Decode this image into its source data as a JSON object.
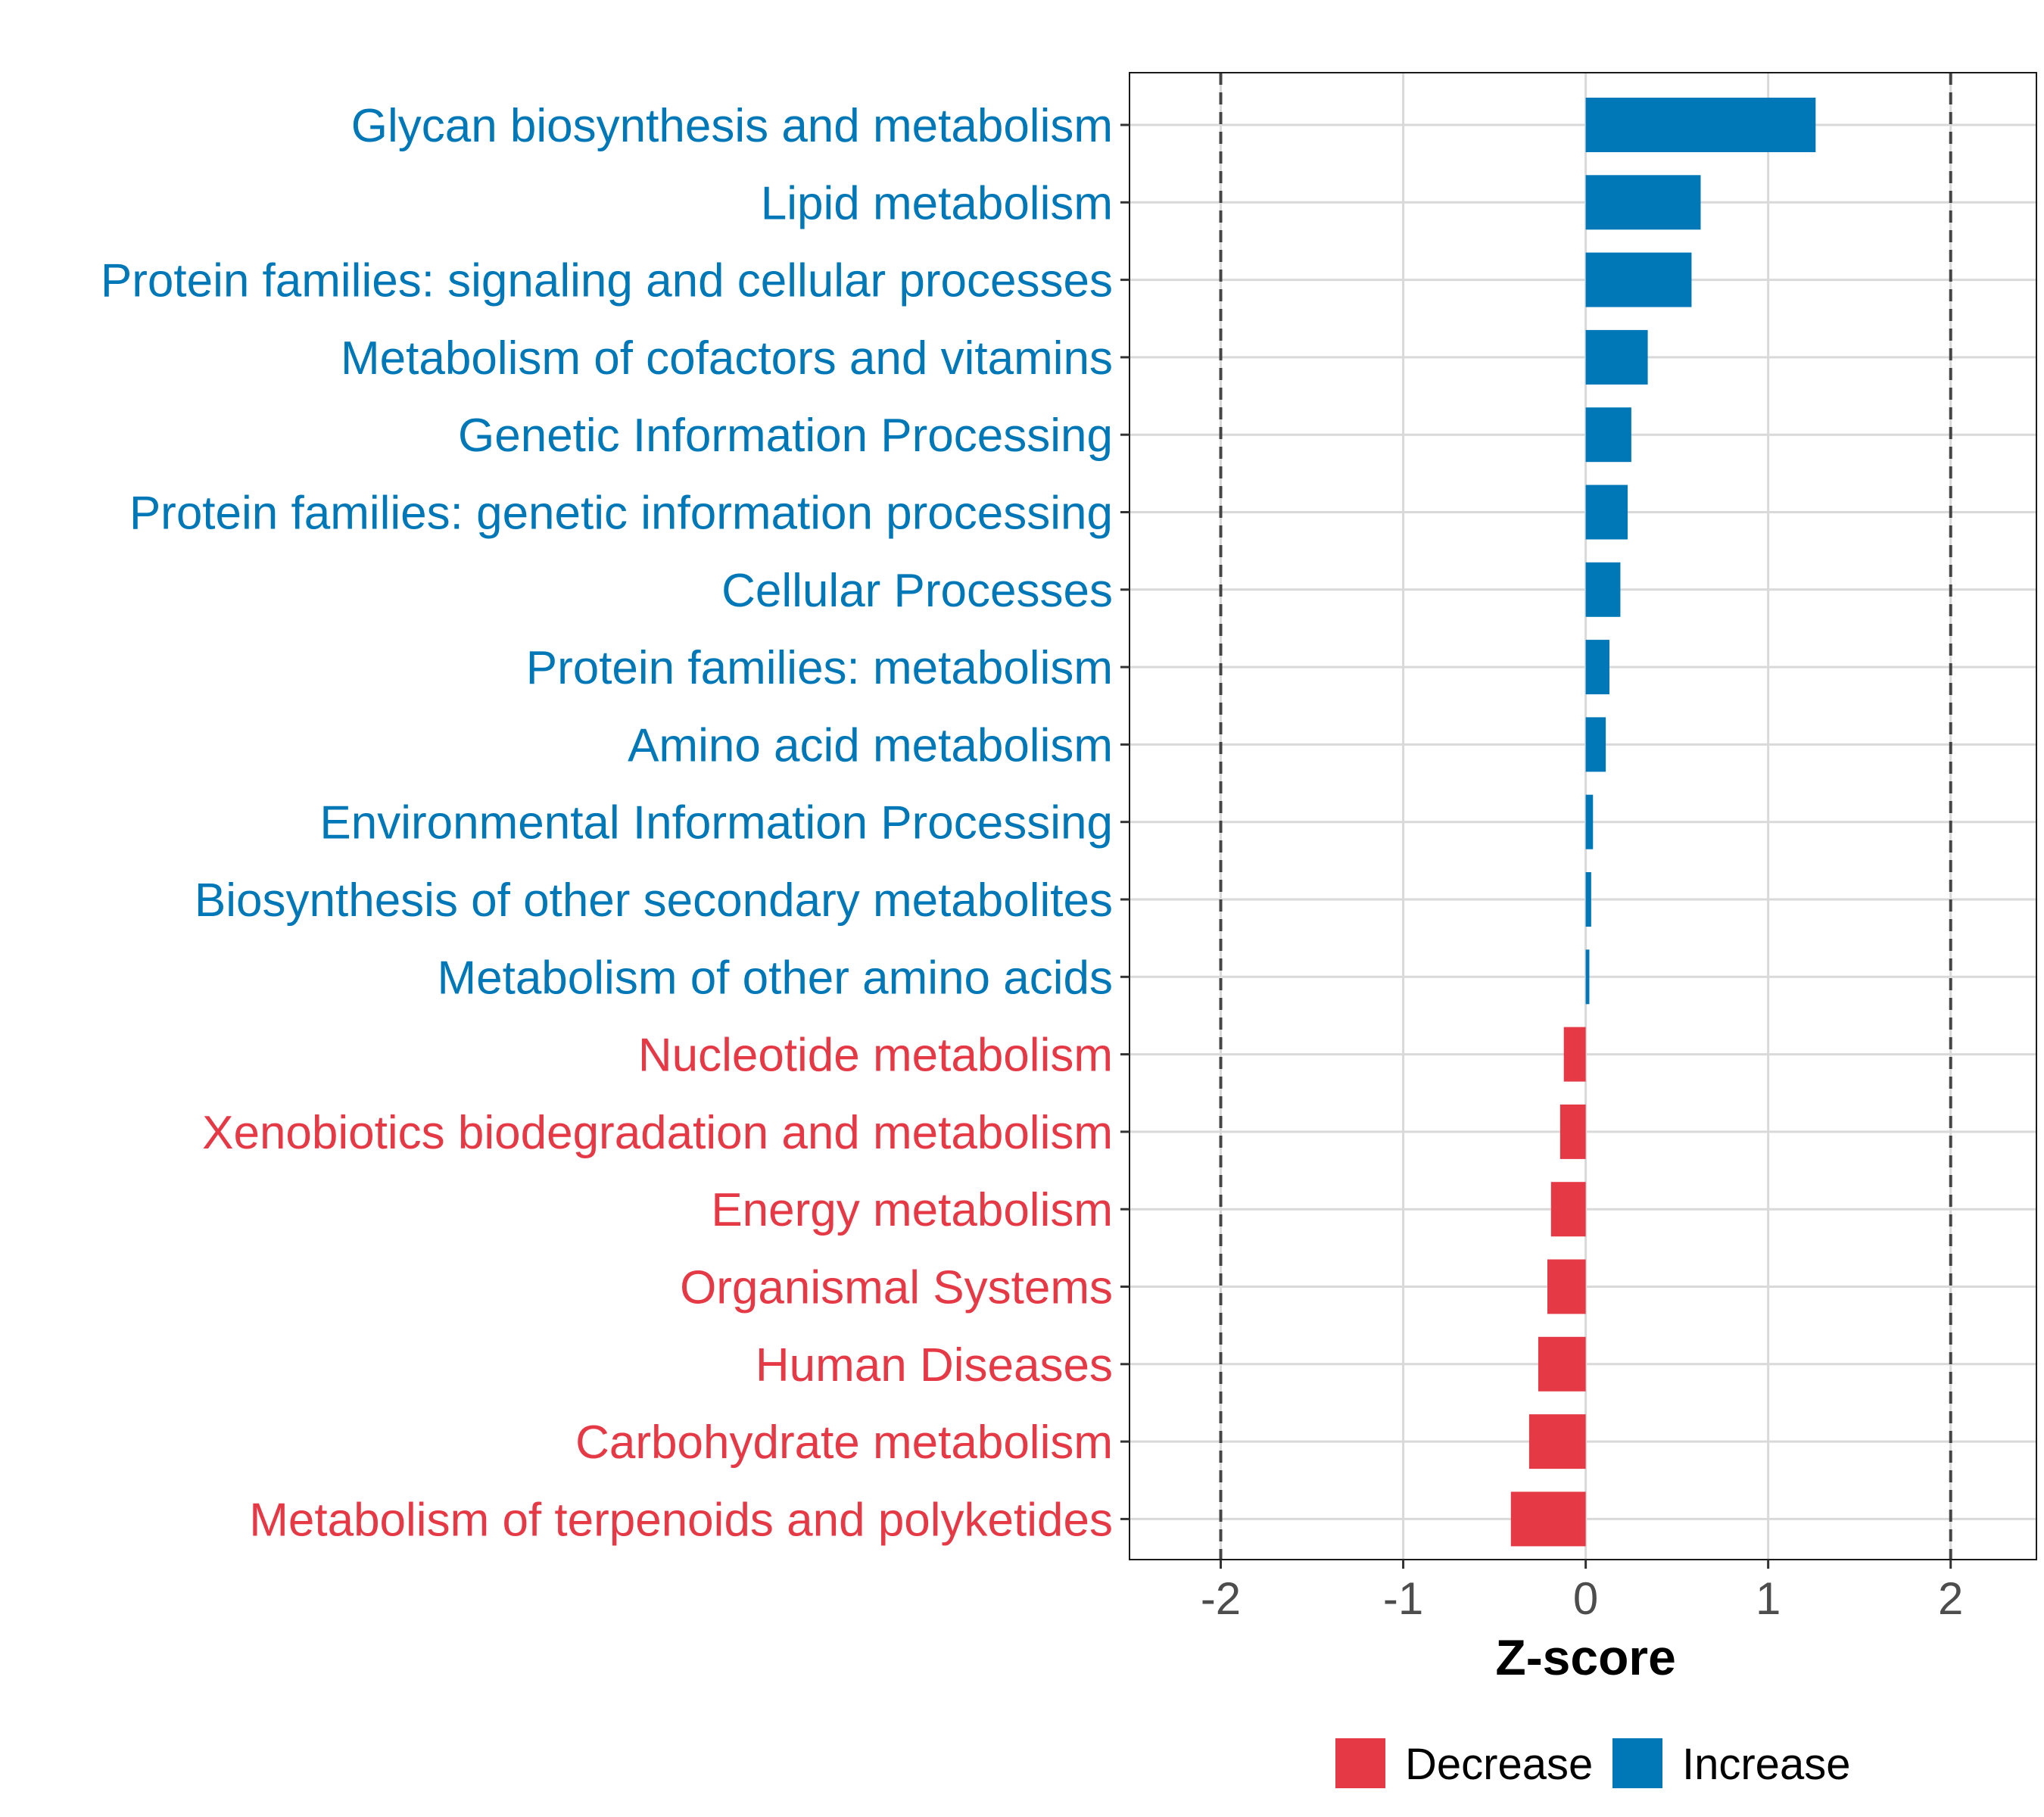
{
  "chart_data": {
    "type": "bar",
    "orientation": "horizontal",
    "categories": [
      "Glycan biosynthesis and metabolism",
      "Lipid metabolism",
      "Protein families: signaling and cellular processes",
      "Metabolism of cofactors and vitamins",
      "Genetic Information Processing",
      "Protein families: genetic information processing",
      "Cellular Processes",
      "Protein families: metabolism",
      "Amino acid metabolism",
      "Environmental Information Processing",
      "Biosynthesis of other secondary metabolites",
      "Metabolism of other amino acids",
      "Nucleotide metabolism",
      "Xenobiotics biodegradation and metabolism",
      "Energy metabolism",
      "Organismal Systems",
      "Human Diseases",
      "Carbohydrate metabolism",
      "Metabolism of terpenoids and polyketides"
    ],
    "values": [
      1.26,
      0.63,
      0.58,
      0.34,
      0.25,
      0.23,
      0.19,
      0.13,
      0.11,
      0.04,
      0.03,
      0.02,
      -0.12,
      -0.14,
      -0.19,
      -0.21,
      -0.26,
      -0.31,
      -0.41
    ],
    "groups": [
      "Increase",
      "Increase",
      "Increase",
      "Increase",
      "Increase",
      "Increase",
      "Increase",
      "Increase",
      "Increase",
      "Increase",
      "Increase",
      "Increase",
      "Decrease",
      "Decrease",
      "Decrease",
      "Decrease",
      "Decrease",
      "Decrease",
      "Decrease"
    ],
    "xlabel": "Z-score",
    "ylabel": "",
    "xlim": [
      -2.5,
      2.47
    ],
    "xticks": [
      -2,
      -1,
      0,
      1,
      2
    ],
    "xtick_labels": [
      "-2",
      "-1",
      "0",
      "1",
      "2"
    ],
    "reference_lines": [
      -2,
      2
    ],
    "legend": {
      "position": "bottom",
      "entries": [
        {
          "label": "Decrease",
          "color": "#e63946"
        },
        {
          "label": "Increase",
          "color": "#0077b6"
        }
      ]
    },
    "colors": {
      "Increase": "#0077b6",
      "Decrease": "#e63946",
      "grid": "#d9d9d9",
      "ref_line": "#444444",
      "axis_text": "#4d4d4d"
    },
    "grid": true
  }
}
